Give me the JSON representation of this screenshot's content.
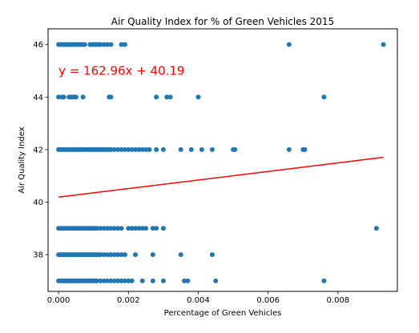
{
  "colors": {
    "points": "#1f77b4",
    "regression": "#ff0000",
    "axis": "#000000",
    "annotation": "#ff0000"
  },
  "chart_data": {
    "type": "scatter",
    "title": "Air Quality Index for % of Green Vehicles 2015",
    "xlabel": "Percentage of Green Vehicles",
    "ylabel": "Air Quality Index",
    "xlim": [
      -0.0003,
      0.0097
    ],
    "ylim": [
      36.6,
      46.6
    ],
    "grid": false,
    "x_ticks": [
      0,
      0.002,
      0.004,
      0.006,
      0.008
    ],
    "x_tick_labels": [
      "0.000",
      "0.002",
      "0.004",
      "0.006",
      "0.008"
    ],
    "y_ticks": [
      38,
      40,
      42,
      44,
      46
    ],
    "y_tick_labels": [
      "38",
      "40",
      "42",
      "44",
      "46"
    ],
    "annotation": "y = 162.96x + 40.19",
    "annotation_position": {
      "x": 0.0,
      "y": 45.0
    },
    "regression": {
      "slope": 162.96,
      "intercept": 40.19,
      "x_range": [
        0.0,
        0.0093
      ]
    },
    "series": [
      {
        "x": [
          0.0,
          5e-05,
          0.0001,
          0.00015,
          0.0002,
          0.00025,
          0.0003,
          0.00035,
          0.0004,
          0.00045,
          0.0005,
          0.00055,
          0.0006,
          0.00065,
          0.0007,
          0.00075,
          0.0009,
          0.00095,
          0.001,
          0.00105,
          0.0011,
          0.00115,
          0.0012,
          0.0013,
          0.0014,
          0.0015,
          0.0018,
          0.0019,
          0.0066,
          0.0093,
          0.0,
          0.0001,
          0.00015,
          0.0003,
          0.00035,
          0.0004,
          0.00045,
          0.0005,
          0.0007,
          0.00145,
          0.0015,
          0.0028,
          0.0031,
          0.0032,
          0.004,
          0.0076,
          0.0,
          5e-05,
          0.0001,
          0.00015,
          0.0002,
          0.00025,
          0.0003,
          0.00035,
          0.0004,
          0.00045,
          0.0005,
          0.00055,
          0.0006,
          0.00065,
          0.0007,
          0.00075,
          0.0008,
          0.00085,
          0.0009,
          0.00095,
          0.001,
          0.00105,
          0.0011,
          0.00115,
          0.0012,
          0.00125,
          0.0013,
          0.00135,
          0.0014,
          0.00145,
          0.0015,
          0.0016,
          0.0017,
          0.0018,
          0.0019,
          0.002,
          0.0021,
          0.0022,
          0.0023,
          0.0024,
          0.0025,
          0.0026,
          0.0028,
          0.003,
          0.0035,
          0.0038,
          0.0041,
          0.0044,
          0.005,
          0.00505,
          0.0066,
          0.007,
          0.00705,
          0.0,
          5e-05,
          0.0001,
          0.00015,
          0.0002,
          0.00025,
          0.0003,
          0.00035,
          0.0004,
          0.00045,
          0.0005,
          0.00055,
          0.0006,
          0.00065,
          0.0007,
          0.00075,
          0.0008,
          0.00085,
          0.0009,
          0.00095,
          0.001,
          0.00105,
          0.0011,
          0.0012,
          0.0013,
          0.0014,
          0.0015,
          0.0016,
          0.0017,
          0.0018,
          0.002,
          0.0021,
          0.0022,
          0.0023,
          0.0024,
          0.0025,
          0.0027,
          0.0028,
          0.003,
          0.0091,
          0.0,
          5e-05,
          0.0001,
          0.00015,
          0.0002,
          0.00025,
          0.0003,
          0.00035,
          0.0004,
          0.00045,
          0.0005,
          0.00055,
          0.0006,
          0.00065,
          0.0007,
          0.00075,
          0.0008,
          0.00085,
          0.0009,
          0.00095,
          0.001,
          0.00105,
          0.0011,
          0.00115,
          0.0012,
          0.0013,
          0.0014,
          0.0015,
          0.0016,
          0.0017,
          0.0018,
          0.0019,
          0.0022,
          0.0027,
          0.0035,
          0.0044,
          0.0,
          5e-05,
          0.0001,
          0.00015,
          0.0002,
          0.00025,
          0.0003,
          0.00035,
          0.0004,
          0.00045,
          0.0005,
          0.00055,
          0.0006,
          0.00065,
          0.0007,
          0.00075,
          0.0008,
          0.00085,
          0.0009,
          0.00095,
          0.001,
          0.00105,
          0.0011,
          0.0012,
          0.0013,
          0.0014,
          0.0015,
          0.0016,
          0.0017,
          0.0018,
          0.0019,
          0.002,
          0.0021,
          0.0024,
          0.0027,
          0.003,
          0.0036,
          0.0037,
          0.0045,
          0.0076
        ],
        "y": [
          46,
          46,
          46,
          46,
          46,
          46,
          46,
          46,
          46,
          46,
          46,
          46,
          46,
          46,
          46,
          46,
          46,
          46,
          46,
          46,
          46,
          46,
          46,
          46,
          46,
          46,
          46,
          46,
          46,
          46,
          44,
          44,
          44,
          44,
          44,
          44,
          44,
          44,
          44,
          44,
          44,
          44,
          44,
          44,
          44,
          44,
          42,
          42,
          42,
          42,
          42,
          42,
          42,
          42,
          42,
          42,
          42,
          42,
          42,
          42,
          42,
          42,
          42,
          42,
          42,
          42,
          42,
          42,
          42,
          42,
          42,
          42,
          42,
          42,
          42,
          42,
          42,
          42,
          42,
          42,
          42,
          42,
          42,
          42,
          42,
          42,
          42,
          42,
          42,
          42,
          42,
          42,
          42,
          42,
          42,
          42,
          42,
          42,
          42,
          39,
          39,
          39,
          39,
          39,
          39,
          39,
          39,
          39,
          39,
          39,
          39,
          39,
          39,
          39,
          39,
          39,
          39,
          39,
          39,
          39,
          39,
          39,
          39,
          39,
          39,
          39,
          39,
          39,
          39,
          39,
          39,
          39,
          39,
          39,
          39,
          39,
          39,
          39,
          39,
          38,
          38,
          38,
          38,
          38,
          38,
          38,
          38,
          38,
          38,
          38,
          38,
          38,
          38,
          38,
          38,
          38,
          38,
          38,
          38,
          38,
          38,
          38,
          38,
          38,
          38,
          38,
          38,
          38,
          38,
          38,
          38,
          38,
          38,
          38,
          38,
          37,
          37,
          37,
          37,
          37,
          37,
          37,
          37,
          37,
          37,
          37,
          37,
          37,
          37,
          37,
          37,
          37,
          37,
          37,
          37,
          37,
          37,
          37,
          37,
          37,
          37,
          37,
          37,
          37,
          37,
          37,
          37,
          37,
          37,
          37,
          37,
          37,
          37,
          37,
          37
        ]
      }
    ]
  }
}
